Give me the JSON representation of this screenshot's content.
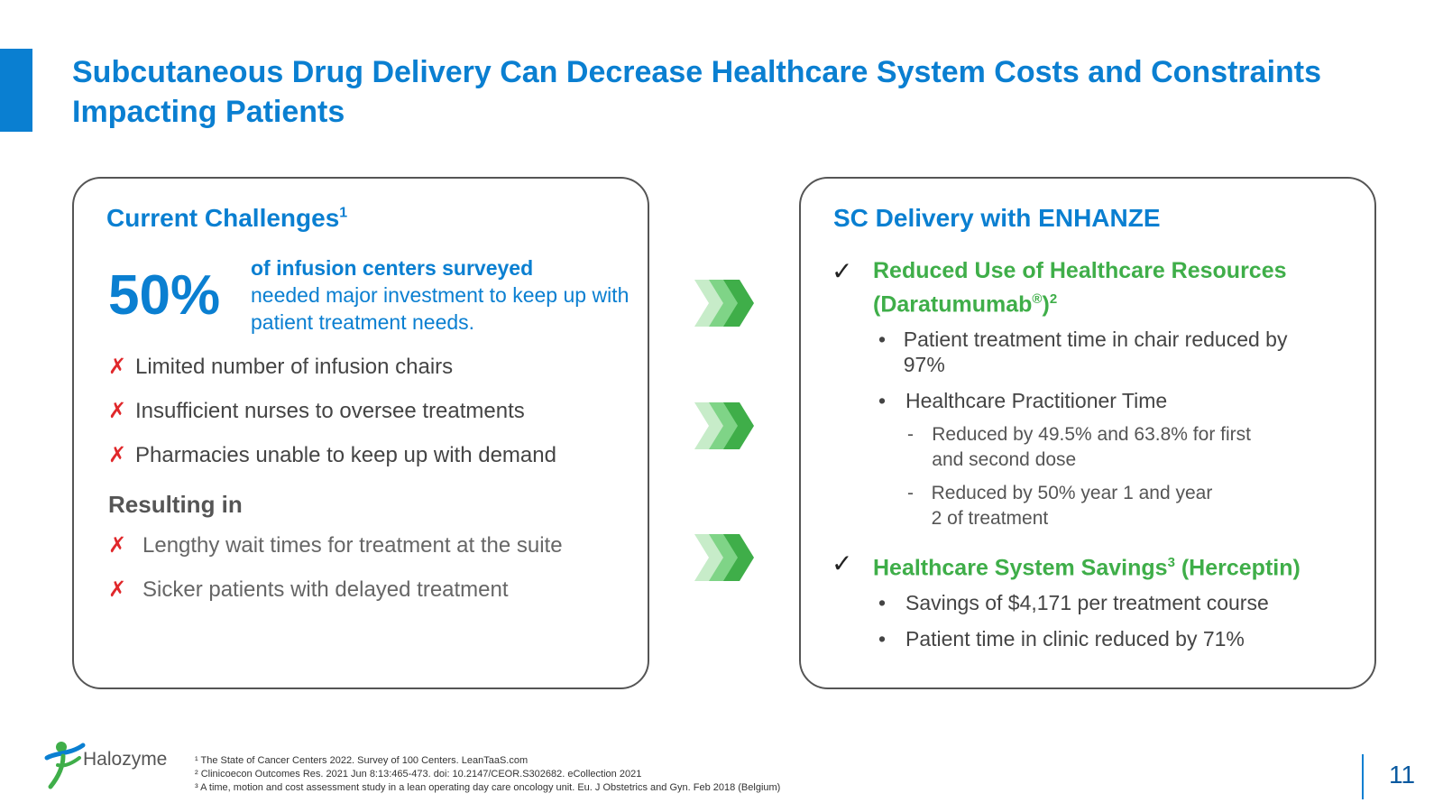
{
  "title": "Subcutaneous Drug Delivery Can Decrease Healthcare System Costs and Constraints Impacting Patients",
  "left_card": {
    "heading": "Current Challenges",
    "heading_sup": "1",
    "stat_value": "50%",
    "stat_bold": "of infusion centers surveyed",
    "stat_rest": "needed major investment to keep up with patient treatment needs.",
    "challenges": [
      "Limited number of infusion chairs",
      "Insufficient nurses to oversee treatments",
      "Pharmacies unable to keep up with demand"
    ],
    "resulting_label": "Resulting in",
    "results": [
      "Lengthy wait times for treatment at the suite",
      "Sicker patients with delayed treatment"
    ],
    "x_glyph": "✗"
  },
  "right_card": {
    "heading": "SC Delivery with ENHANZE",
    "check_glyph": "✓",
    "benefit1": {
      "title_main": "Reduced Use of Healthcare Resources (Daratumumab",
      "title_reg": "®",
      "title_end": ")",
      "title_sup": "2",
      "bullets": [
        "Patient treatment time in chair reduced by 97%",
        "Healthcare Practitioner Time"
      ],
      "subs": [
        "Reduced by 49.5% and 63.8% for first and second dose",
        "Reduced by 50% year 1 and year 2 of treatment"
      ]
    },
    "benefit2": {
      "title_main": "Healthcare System Savings",
      "title_sup": "3",
      "title_end": " (Herceptin)",
      "bullets": [
        "Savings of $4,171 per treatment course",
        "Patient time in clinic reduced by 71%"
      ]
    },
    "bullet_glyph": "•",
    "dash_glyph": "-"
  },
  "colors": {
    "brand_blue": "#0a7fd1",
    "green": "#3fae49",
    "red": "#e0282b"
  },
  "footer": {
    "logo_text": "Halozyme",
    "footnotes": [
      "¹ The State of Cancer Centers 2022. Survey of 100 Centers. LeanTaaS.com",
      "² Clinicoecon Outcomes Res. 2021 Jun 8:13:465-473. doi: 10.2147/CEOR.S302682. eCollection 2021",
      "³ A time, motion and cost assessment study in a lean operating day care oncology unit. Eu. J Obstetrics and Gyn. Feb 2018 (Belgium)"
    ],
    "page_number": "11"
  }
}
